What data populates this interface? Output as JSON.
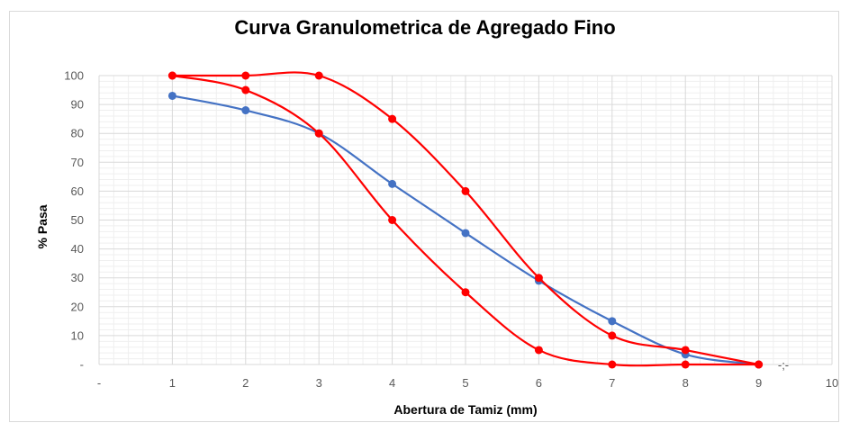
{
  "chart_data": {
    "type": "line",
    "title": "Curva Granulometrica de Agregado Fino",
    "xlabel": "Abertura de Tamiz (mm)",
    "ylabel": "% Pasa",
    "xlim": [
      0,
      10
    ],
    "ylim": [
      0,
      100
    ],
    "x_tick_labels": [
      "-",
      "1",
      "2",
      "3",
      "4",
      "5",
      "6",
      "7",
      "8",
      "9",
      "10"
    ],
    "y_tick_labels": [
      "-",
      "10",
      "20",
      "30",
      "40",
      "50",
      "60",
      "70",
      "80",
      "90",
      "100"
    ],
    "extra_label": "-;-",
    "grid": true,
    "series": [
      {
        "color": "#4472c4",
        "x": [
          1,
          2,
          3,
          4,
          5,
          6,
          7,
          8,
          9
        ],
        "values": [
          93,
          88,
          80,
          62.5,
          45.5,
          29,
          15,
          3.5,
          0
        ]
      },
      {
        "color": "#ff0000",
        "x": [
          1,
          2,
          3,
          4,
          5,
          6,
          7,
          8,
          9
        ],
        "values": [
          100,
          100,
          100,
          85,
          60,
          30,
          10,
          5,
          0
        ]
      },
      {
        "color": "#ff0000",
        "x": [
          1,
          2,
          3,
          4,
          5,
          6,
          7,
          8,
          9
        ],
        "values": [
          100,
          95,
          80,
          50,
          25,
          5,
          0,
          0,
          0
        ]
      }
    ]
  }
}
